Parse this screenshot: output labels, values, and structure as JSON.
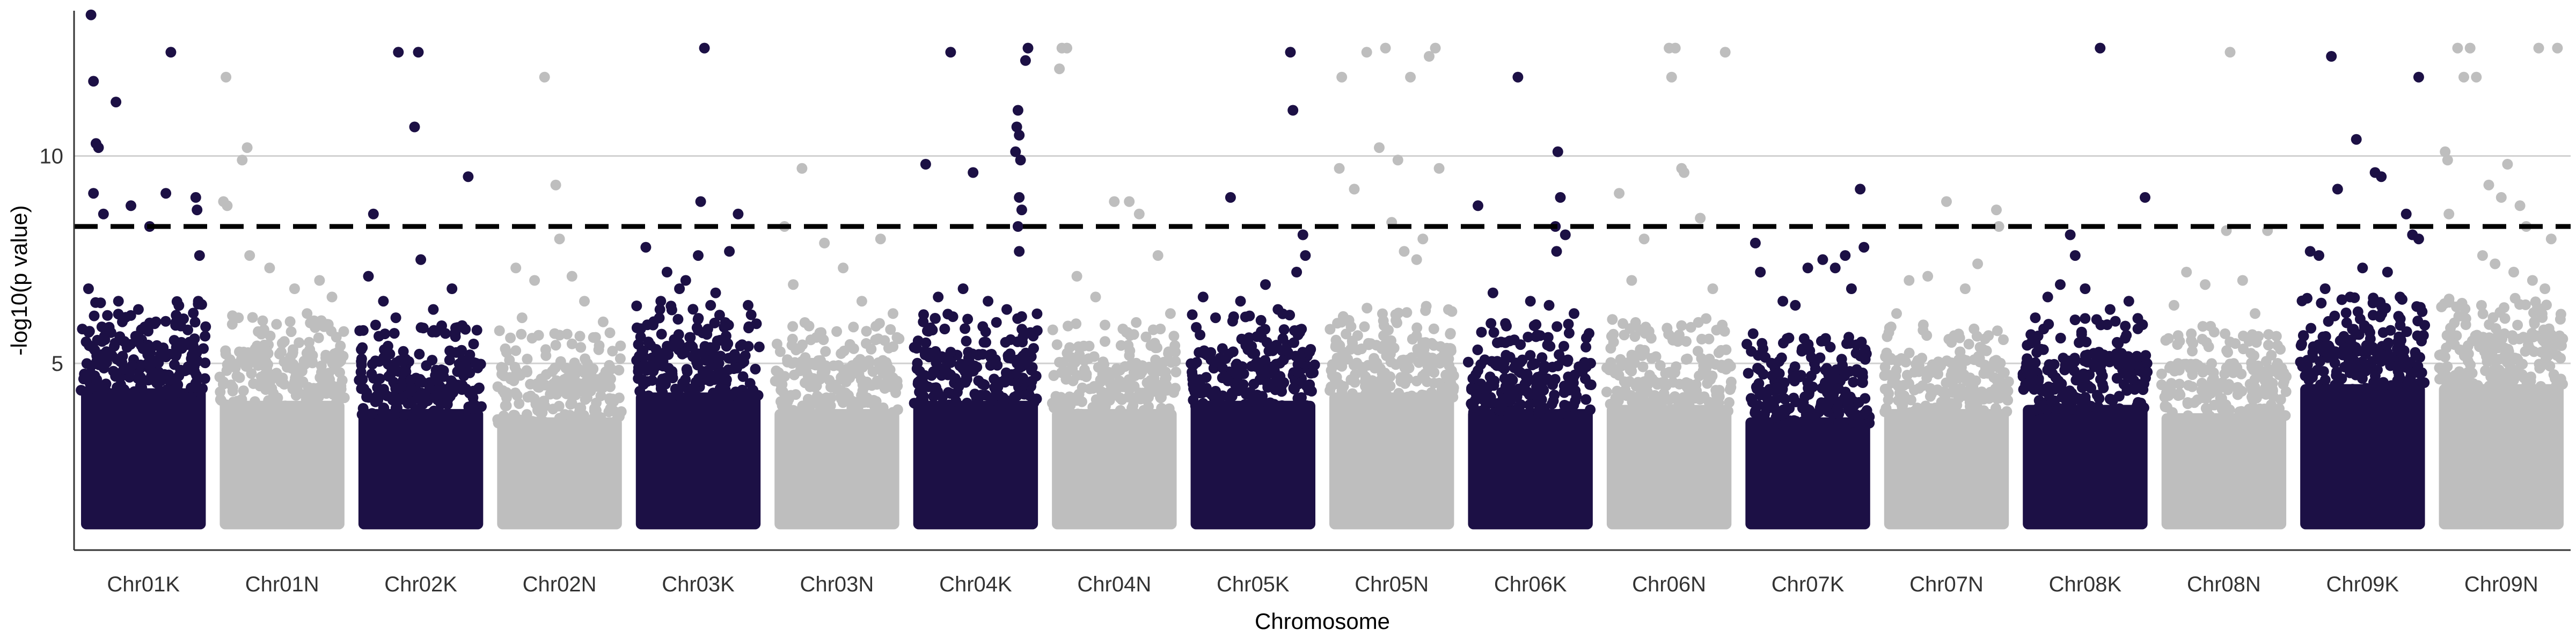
{
  "colors": {
    "dark": "#1c1045",
    "light": "#bebebe",
    "grid": "#d0d0d0",
    "axis": "#333333",
    "threshold": "#000000"
  },
  "chart_data": {
    "type": "scatter",
    "xlabel": "Chromosome",
    "ylabel": "-log10(p value)",
    "ylim": [
      0.5,
      13.5
    ],
    "yticks": [
      5,
      10
    ],
    "grid": "horizontal",
    "threshold": 8.3,
    "categories": [
      "Chr01K",
      "Chr01N",
      "Chr02K",
      "Chr02N",
      "Chr03K",
      "Chr03N",
      "Chr04K",
      "Chr04N",
      "Chr05K",
      "Chr05N",
      "Chr06K",
      "Chr06N",
      "Chr07K",
      "Chr07N",
      "Chr08K",
      "Chr08N",
      "Chr09K",
      "Chr09N"
    ],
    "chromosomes": [
      {
        "name": "Chr01K",
        "color": "dark",
        "bulk_top": 5.5,
        "peaks": [
          [
            0.08,
            13.4
          ],
          [
            0.1,
            11.8
          ],
          [
            0.12,
            10.3
          ],
          [
            0.14,
            10.2
          ],
          [
            0.28,
            11.3
          ],
          [
            0.1,
            9.1
          ],
          [
            0.18,
            8.6
          ],
          [
            0.4,
            8.8
          ],
          [
            0.55,
            8.3
          ],
          [
            0.72,
            12.5
          ],
          [
            0.68,
            9.1
          ],
          [
            0.92,
            9.0
          ],
          [
            0.93,
            8.7
          ],
          [
            0.95,
            7.6
          ],
          [
            0.94,
            6.5
          ],
          [
            0.3,
            6.5
          ],
          [
            0.46,
            6.3
          ],
          [
            0.06,
            6.8
          ],
          [
            0.6,
            6.0
          ],
          [
            0.8,
            5.9
          ]
        ]
      },
      {
        "name": "Chr01N",
        "color": "light",
        "bulk_top": 5.2,
        "peaks": [
          [
            0.05,
            11.9
          ],
          [
            0.22,
            10.2
          ],
          [
            0.18,
            9.9
          ],
          [
            0.03,
            8.9
          ],
          [
            0.06,
            8.8
          ],
          [
            0.24,
            7.6
          ],
          [
            0.4,
            7.3
          ],
          [
            0.6,
            6.8
          ],
          [
            0.8,
            7.0
          ],
          [
            0.9,
            6.6
          ],
          [
            0.15,
            6.1
          ],
          [
            0.7,
            6.2
          ]
        ]
      },
      {
        "name": "Chr02K",
        "color": "dark",
        "bulk_top": 5.0,
        "peaks": [
          [
            0.32,
            12.5
          ],
          [
            0.48,
            12.5
          ],
          [
            0.45,
            10.7
          ],
          [
            0.88,
            9.5
          ],
          [
            0.12,
            8.6
          ],
          [
            0.5,
            7.5
          ],
          [
            0.08,
            7.1
          ],
          [
            0.2,
            6.5
          ],
          [
            0.3,
            6.1
          ],
          [
            0.6,
            6.3
          ],
          [
            0.75,
            6.8
          ],
          [
            0.95,
            5.8
          ]
        ]
      },
      {
        "name": "Chr02N",
        "color": "light",
        "bulk_top": 4.8,
        "peaks": [
          [
            0.38,
            11.9
          ],
          [
            0.47,
            9.3
          ],
          [
            0.5,
            8.0
          ],
          [
            0.15,
            7.3
          ],
          [
            0.3,
            7.0
          ],
          [
            0.6,
            7.1
          ],
          [
            0.7,
            6.5
          ],
          [
            0.85,
            6.0
          ],
          [
            0.2,
            6.1
          ]
        ]
      },
      {
        "name": "Chr03K",
        "color": "dark",
        "bulk_top": 5.4,
        "peaks": [
          [
            0.55,
            12.6
          ],
          [
            0.52,
            8.9
          ],
          [
            0.82,
            8.6
          ],
          [
            0.08,
            7.8
          ],
          [
            0.5,
            7.6
          ],
          [
            0.25,
            7.2
          ],
          [
            0.4,
            7.0
          ],
          [
            0.64,
            6.7
          ],
          [
            0.75,
            7.7
          ],
          [
            0.2,
            6.5
          ],
          [
            0.9,
            6.4
          ],
          [
            0.35,
            6.8
          ],
          [
            0.6,
            6.4
          ]
        ]
      },
      {
        "name": "Chr03N",
        "color": "light",
        "bulk_top": 5.0,
        "peaks": [
          [
            0.22,
            9.7
          ],
          [
            0.08,
            8.3
          ],
          [
            0.4,
            7.9
          ],
          [
            0.55,
            7.3
          ],
          [
            0.85,
            8.0
          ],
          [
            0.15,
            6.9
          ],
          [
            0.7,
            6.5
          ],
          [
            0.95,
            6.2
          ]
        ]
      },
      {
        "name": "Chr04K",
        "color": "dark",
        "bulk_top": 5.2,
        "peaks": [
          [
            0.1,
            9.8
          ],
          [
            0.3,
            12.5
          ],
          [
            0.48,
            9.6
          ],
          [
            0.92,
            12.6
          ],
          [
            0.9,
            12.3
          ],
          [
            0.84,
            11.1
          ],
          [
            0.83,
            10.7
          ],
          [
            0.85,
            10.5
          ],
          [
            0.82,
            10.1
          ],
          [
            0.86,
            9.9
          ],
          [
            0.85,
            9.0
          ],
          [
            0.87,
            8.7
          ],
          [
            0.84,
            8.3
          ],
          [
            0.85,
            7.7
          ],
          [
            0.2,
            6.6
          ],
          [
            0.6,
            6.5
          ],
          [
            0.75,
            6.3
          ],
          [
            0.4,
            6.8
          ],
          [
            0.08,
            6.0
          ]
        ]
      },
      {
        "name": "Chr04N",
        "color": "light",
        "bulk_top": 5.0,
        "peaks": [
          [
            0.08,
            12.6
          ],
          [
            0.06,
            12.1
          ],
          [
            0.12,
            12.6
          ],
          [
            0.5,
            8.9
          ],
          [
            0.62,
            8.9
          ],
          [
            0.7,
            8.6
          ],
          [
            0.85,
            7.6
          ],
          [
            0.2,
            7.1
          ],
          [
            0.35,
            6.6
          ],
          [
            0.95,
            6.2
          ]
        ]
      },
      {
        "name": "Chr05K",
        "color": "dark",
        "bulk_top": 5.2,
        "peaks": [
          [
            0.32,
            9.0
          ],
          [
            0.8,
            12.5
          ],
          [
            0.82,
            11.1
          ],
          [
            0.9,
            8.1
          ],
          [
            0.92,
            7.6
          ],
          [
            0.85,
            7.2
          ],
          [
            0.6,
            6.9
          ],
          [
            0.4,
            6.5
          ],
          [
            0.1,
            6.6
          ],
          [
            0.2,
            6.1
          ],
          [
            0.7,
            6.3
          ]
        ]
      },
      {
        "name": "Chr05N",
        "color": "light",
        "bulk_top": 5.4,
        "peaks": [
          [
            0.3,
            12.5
          ],
          [
            0.45,
            12.6
          ],
          [
            0.65,
            11.9
          ],
          [
            0.8,
            12.4
          ],
          [
            0.85,
            12.6
          ],
          [
            0.1,
            11.9
          ],
          [
            0.4,
            10.2
          ],
          [
            0.55,
            9.9
          ],
          [
            0.08,
            9.7
          ],
          [
            0.2,
            9.2
          ],
          [
            0.88,
            9.7
          ],
          [
            0.5,
            8.4
          ],
          [
            0.75,
            8.0
          ],
          [
            0.6,
            7.7
          ],
          [
            0.7,
            7.5
          ]
        ]
      },
      {
        "name": "Chr06K",
        "color": "dark",
        "bulk_top": 5.0,
        "peaks": [
          [
            0.08,
            8.8
          ],
          [
            0.4,
            11.9
          ],
          [
            0.72,
            10.1
          ],
          [
            0.74,
            9.0
          ],
          [
            0.7,
            8.3
          ],
          [
            0.71,
            7.7
          ],
          [
            0.78,
            8.1
          ],
          [
            0.2,
            6.7
          ],
          [
            0.5,
            6.5
          ],
          [
            0.85,
            6.2
          ],
          [
            0.65,
            6.4
          ]
        ]
      },
      {
        "name": "Chr06N",
        "color": "light",
        "bulk_top": 5.1,
        "peaks": [
          [
            0.5,
            12.6
          ],
          [
            0.55,
            12.6
          ],
          [
            0.52,
            11.9
          ],
          [
            0.95,
            12.5
          ],
          [
            0.1,
            9.1
          ],
          [
            0.6,
            9.7
          ],
          [
            0.62,
            9.6
          ],
          [
            0.3,
            8.0
          ],
          [
            0.75,
            8.5
          ],
          [
            0.2,
            7.0
          ],
          [
            0.85,
            6.8
          ]
        ]
      },
      {
        "name": "Chr07K",
        "color": "dark",
        "bulk_top": 4.8,
        "peaks": [
          [
            0.08,
            7.9
          ],
          [
            0.12,
            7.2
          ],
          [
            0.5,
            7.3
          ],
          [
            0.62,
            7.5
          ],
          [
            0.72,
            7.3
          ],
          [
            0.8,
            7.6
          ],
          [
            0.92,
            9.2
          ],
          [
            0.95,
            7.8
          ],
          [
            0.3,
            6.5
          ],
          [
            0.4,
            6.4
          ],
          [
            0.85,
            6.8
          ]
        ]
      },
      {
        "name": "Chr07N",
        "color": "light",
        "bulk_top": 5.0,
        "peaks": [
          [
            0.5,
            8.9
          ],
          [
            0.9,
            8.7
          ],
          [
            0.92,
            8.3
          ],
          [
            0.2,
            7.0
          ],
          [
            0.35,
            7.1
          ],
          [
            0.65,
            6.8
          ],
          [
            0.75,
            7.4
          ],
          [
            0.1,
            6.2
          ]
        ]
      },
      {
        "name": "Chr08K",
        "color": "dark",
        "bulk_top": 5.1,
        "peaks": [
          [
            0.62,
            12.6
          ],
          [
            0.98,
            9.0
          ],
          [
            0.38,
            8.1
          ],
          [
            0.42,
            7.6
          ],
          [
            0.3,
            6.9
          ],
          [
            0.2,
            6.6
          ],
          [
            0.5,
            6.8
          ],
          [
            0.7,
            6.3
          ],
          [
            0.85,
            6.5
          ],
          [
            0.1,
            6.1
          ]
        ]
      },
      {
        "name": "Chr08N",
        "color": "light",
        "bulk_top": 4.9,
        "peaks": [
          [
            0.55,
            12.5
          ],
          [
            0.52,
            8.2
          ],
          [
            0.85,
            8.2
          ],
          [
            0.2,
            7.2
          ],
          [
            0.35,
            6.9
          ],
          [
            0.65,
            7.0
          ],
          [
            0.1,
            6.4
          ],
          [
            0.75,
            6.2
          ]
        ]
      },
      {
        "name": "Chr09K",
        "color": "dark",
        "bulk_top": 5.6,
        "peaks": [
          [
            0.25,
            12.4
          ],
          [
            0.45,
            10.4
          ],
          [
            0.6,
            9.6
          ],
          [
            0.65,
            9.5
          ],
          [
            0.95,
            11.9
          ],
          [
            0.3,
            9.2
          ],
          [
            0.85,
            8.6
          ],
          [
            0.9,
            8.1
          ],
          [
            0.95,
            8.0
          ],
          [
            0.08,
            7.7
          ],
          [
            0.15,
            7.6
          ],
          [
            0.5,
            7.3
          ],
          [
            0.7,
            7.2
          ],
          [
            0.2,
            6.8
          ],
          [
            0.4,
            6.6
          ],
          [
            0.8,
            6.6
          ]
        ]
      },
      {
        "name": "Chr09N",
        "color": "light",
        "bulk_top": 5.6,
        "peaks": [
          [
            0.15,
            12.6
          ],
          [
            0.2,
            11.9
          ],
          [
            0.25,
            12.6
          ],
          [
            0.3,
            11.9
          ],
          [
            0.8,
            12.6
          ],
          [
            0.95,
            12.6
          ],
          [
            0.05,
            10.1
          ],
          [
            0.07,
            9.9
          ],
          [
            0.4,
            9.3
          ],
          [
            0.5,
            9.0
          ],
          [
            0.55,
            9.8
          ],
          [
            0.65,
            8.8
          ],
          [
            0.7,
            8.3
          ],
          [
            0.08,
            8.6
          ],
          [
            0.9,
            8.0
          ],
          [
            0.35,
            7.6
          ],
          [
            0.45,
            7.4
          ],
          [
            0.6,
            7.2
          ],
          [
            0.75,
            7.0
          ],
          [
            0.85,
            6.8
          ]
        ]
      }
    ]
  }
}
